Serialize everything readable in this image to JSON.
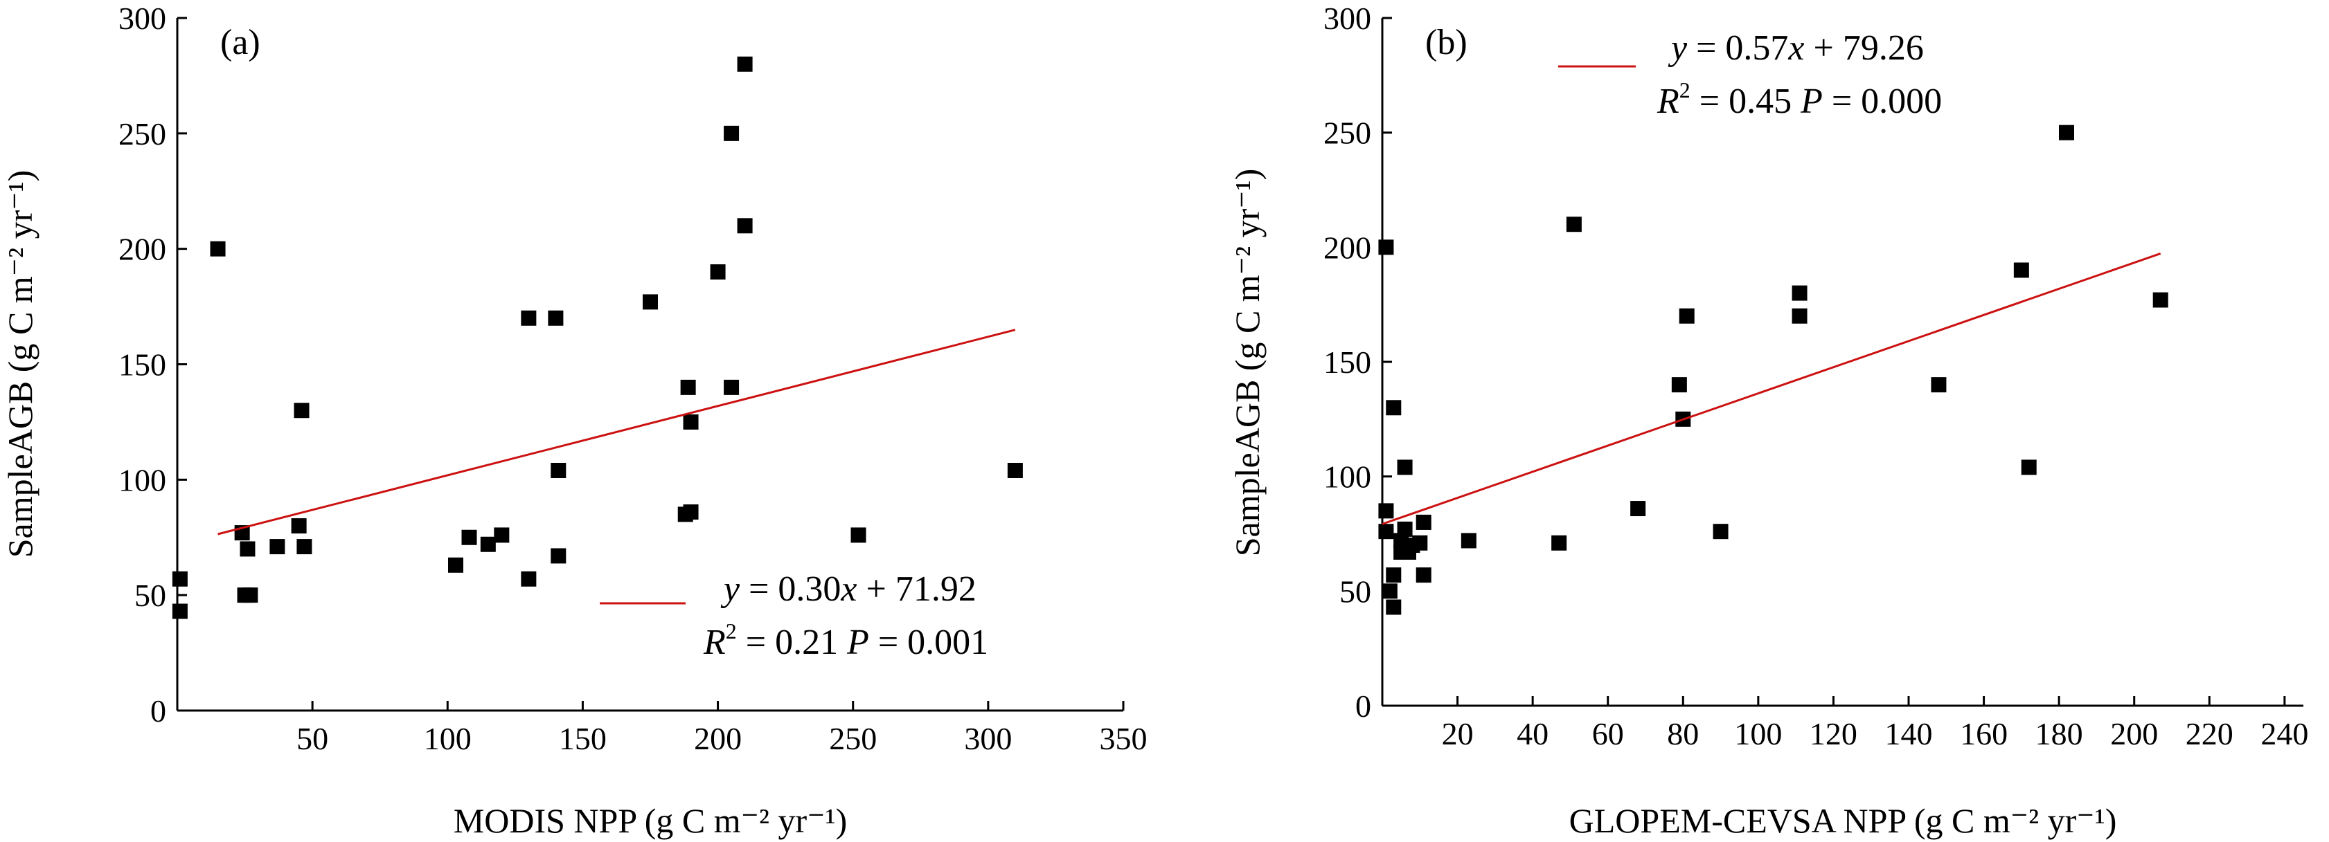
{
  "chart_data": [
    {
      "type": "scatter",
      "panel_label": "(a)",
      "xlabel": "MODIS NPP (g C m⁻² yr⁻¹)",
      "ylabel": "SampleAGB (g C m⁻² yr⁻¹)",
      "xlim": [
        0,
        350
      ],
      "ylim": [
        0,
        300
      ],
      "x_ticks": [
        50,
        100,
        150,
        200,
        250,
        300,
        350
      ],
      "y_ticks": [
        0,
        50,
        100,
        150,
        200,
        250,
        300
      ],
      "legend_placement": "bottom-right",
      "fit": {
        "slope": 0.3,
        "intercept": 71.92,
        "x_range": [
          15,
          310
        ]
      },
      "equation": {
        "y_part": "y",
        "eq_rest": " = 0.30",
        "x_part": "x",
        "plus_part": " + 71.92"
      },
      "stats": {
        "r_part": "R",
        "r_sup": "2",
        "r_val": " = 0.21 ",
        "p_part": "P",
        "p_val": " = 0.001"
      },
      "points": [
        [
          1,
          57
        ],
        [
          1,
          43
        ],
        [
          15,
          200
        ],
        [
          24,
          77
        ],
        [
          25,
          50
        ],
        [
          26,
          70
        ],
        [
          27,
          50
        ],
        [
          37,
          71
        ],
        [
          45,
          80
        ],
        [
          46,
          130
        ],
        [
          47,
          71
        ],
        [
          103,
          63
        ],
        [
          108,
          75
        ],
        [
          115,
          72
        ],
        [
          120,
          76
        ],
        [
          130,
          170
        ],
        [
          130,
          57
        ],
        [
          140,
          170
        ],
        [
          141,
          104
        ],
        [
          141,
          67
        ],
        [
          175,
          177
        ],
        [
          188,
          85
        ],
        [
          189,
          140
        ],
        [
          190,
          125
        ],
        [
          190,
          86
        ],
        [
          200,
          190
        ],
        [
          205,
          250
        ],
        [
          205,
          140
        ],
        [
          210,
          280
        ],
        [
          210,
          210
        ],
        [
          252,
          76
        ],
        [
          310,
          104
        ]
      ]
    },
    {
      "type": "scatter",
      "panel_label": "(b)",
      "xlabel": "GLOPEM-CEVSA NPP (g C m⁻² yr⁻¹)",
      "ylabel": "SampleAGB (g C m⁻² yr⁻¹)",
      "xlim": [
        0,
        245
      ],
      "ylim": [
        0,
        300
      ],
      "x_ticks": [
        20,
        40,
        60,
        80,
        100,
        120,
        140,
        160,
        180,
        200,
        220,
        240
      ],
      "y_ticks": [
        0,
        50,
        100,
        150,
        200,
        250,
        300
      ],
      "legend_placement": "top-left",
      "fit": {
        "slope": 0.57,
        "intercept": 79.26,
        "x_range": [
          0,
          207
        ]
      },
      "equation": {
        "y_part": "y",
        "eq_rest": " = 0.57",
        "x_part": "x",
        "plus_part": " + 79.26"
      },
      "stats": {
        "r_part": "R",
        "r_sup": "2",
        "r_val": " = 0.45 ",
        "p_part": "P",
        "p_val": " = 0.000"
      },
      "points": [
        [
          1,
          200
        ],
        [
          1,
          85
        ],
        [
          1,
          76
        ],
        [
          2,
          50
        ],
        [
          3,
          57
        ],
        [
          3,
          130
        ],
        [
          3,
          43
        ],
        [
          5,
          67
        ],
        [
          5,
          72
        ],
        [
          6,
          104
        ],
        [
          6,
          77
        ],
        [
          7,
          67
        ],
        [
          8,
          70
        ],
        [
          10,
          71
        ],
        [
          11,
          80
        ],
        [
          11,
          57
        ],
        [
          23,
          72
        ],
        [
          47,
          71
        ],
        [
          51,
          210
        ],
        [
          68,
          86
        ],
        [
          79,
          140
        ],
        [
          80,
          125
        ],
        [
          81,
          170
        ],
        [
          90,
          76
        ],
        [
          111,
          180
        ],
        [
          111,
          170
        ],
        [
          148,
          140
        ],
        [
          170,
          190
        ],
        [
          172,
          104
        ],
        [
          182,
          250
        ],
        [
          207,
          177
        ]
      ]
    }
  ]
}
